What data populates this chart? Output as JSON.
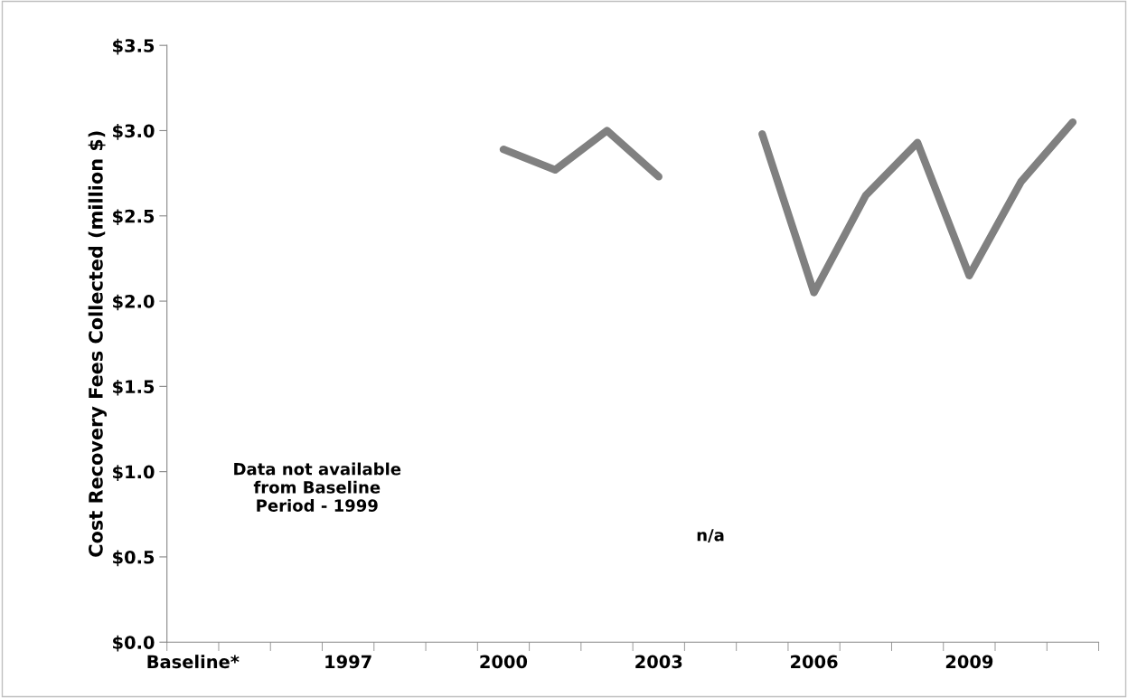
{
  "chart_data": {
    "type": "line",
    "ylabel": "Cost Recovery Fees Collected (million $)",
    "categories": [
      "Baseline*",
      null,
      null,
      "1997",
      null,
      null,
      "2000",
      null,
      null,
      "2003",
      null,
      null,
      "2006",
      null,
      null,
      "2009",
      null,
      null
    ],
    "series": [
      {
        "color": "#808080",
        "values": [
          null,
          null,
          null,
          null,
          null,
          null,
          2.89,
          2.77,
          3.0,
          2.73,
          null,
          2.98,
          2.05,
          2.62,
          2.93,
          2.15,
          2.7,
          3.05
        ]
      }
    ],
    "ylim": [
      0,
      3.5
    ],
    "yticks": [
      {
        "value": 0,
        "label": "$0.0"
      },
      {
        "value": 0.5,
        "label": "$0.5"
      },
      {
        "value": 1.0,
        "label": "$1.0"
      },
      {
        "value": 1.5,
        "label": "$1.5"
      },
      {
        "value": 2.0,
        "label": "$2.0"
      },
      {
        "value": 2.5,
        "label": "$2.5"
      },
      {
        "value": 3.0,
        "label": "$3.0"
      },
      {
        "value": 3.5,
        "label": "$3.5"
      }
    ],
    "annotations": [
      "Data not available\nfrom Baseline\nPeriod - 1999",
      "n/a"
    ],
    "grid": false,
    "legend": false,
    "marker": "none",
    "line_style": "solid"
  }
}
